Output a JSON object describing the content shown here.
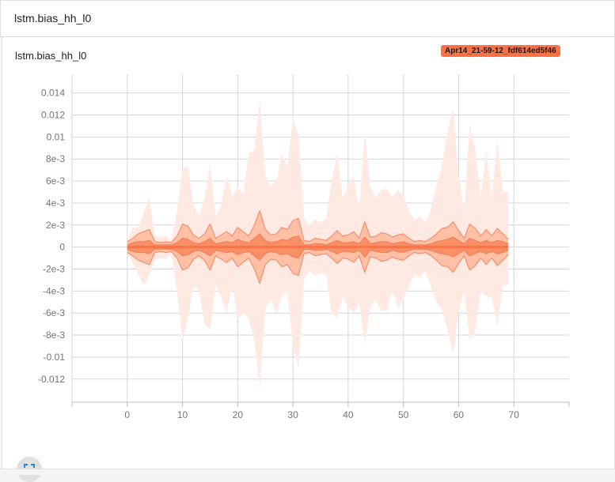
{
  "header": {
    "title": "lstm.bias_hh_l0"
  },
  "card": {
    "title": "lstm.bias_hh_l0",
    "run_label": "Apr14_21-59-12_fdf614ed5f46"
  },
  "icons": {
    "expand": "fullscreen-icon"
  },
  "colors": {
    "outer_band": "#ffe9e3",
    "mid_band": "#ffb89b",
    "inner_band": "#f7895f",
    "median": "#ff7043",
    "edge": "#f26f47",
    "grid": "#d6d6d6"
  },
  "chart_data": {
    "type": "area",
    "title": "lstm.bias_hh_l0",
    "xlabel": "",
    "ylabel": "",
    "xlim": [
      -10,
      80
    ],
    "ylim": [
      -0.0141,
      0.0157
    ],
    "x_ticks": [
      0,
      10,
      20,
      30,
      40,
      50,
      60,
      70
    ],
    "y_ticks": [
      {
        "v": 0.014,
        "label": "0.014"
      },
      {
        "v": 0.012,
        "label": "0.012"
      },
      {
        "v": 0.01,
        "label": "0.01"
      },
      {
        "v": 0.008,
        "label": "8e-3"
      },
      {
        "v": 0.006,
        "label": "6e-3"
      },
      {
        "v": 0.004,
        "label": "4e-3"
      },
      {
        "v": 0.002,
        "label": "2e-3"
      },
      {
        "v": 0,
        "label": "0"
      },
      {
        "v": -0.002,
        "label": "-2e-3"
      },
      {
        "v": -0.004,
        "label": "-4e-3"
      },
      {
        "v": -0.006,
        "label": "-6e-3"
      },
      {
        "v": -0.008,
        "label": "-8e-3"
      },
      {
        "v": -0.01,
        "label": "-0.01"
      },
      {
        "v": -0.012,
        "label": "-0.012"
      }
    ],
    "grid": true,
    "steps": [
      0,
      1,
      2,
      3,
      4,
      5,
      6,
      7,
      8,
      9,
      10,
      11,
      12,
      13,
      14,
      15,
      16,
      17,
      18,
      19,
      20,
      21,
      22,
      23,
      24,
      25,
      26,
      27,
      28,
      29,
      30,
      31,
      32,
      33,
      34,
      35,
      36,
      37,
      38,
      39,
      40,
      41,
      42,
      43,
      44,
      45,
      46,
      47,
      48,
      49,
      50,
      51,
      52,
      53,
      54,
      55,
      56,
      57,
      58,
      59,
      60,
      61,
      62,
      63,
      64,
      65,
      66,
      67,
      68,
      69
    ],
    "max": [
      0.0005,
      0.0018,
      0.0018,
      0.0032,
      0.0045,
      0.0011,
      0.0009,
      0.0011,
      0.0006,
      0.0032,
      0.0072,
      0.0073,
      0.0038,
      0.0028,
      0.0045,
      0.0075,
      0.0028,
      0.0038,
      0.0065,
      0.0045,
      0.0055,
      0.0048,
      0.0085,
      0.0088,
      0.0134,
      0.0065,
      0.0055,
      0.006,
      0.0085,
      0.0072,
      0.0118,
      0.0102,
      0.0026,
      0.0018,
      0.0026,
      0.0022,
      0.0026,
      0.006,
      0.0085,
      0.0045,
      0.0055,
      0.0065,
      0.0035,
      0.0105,
      0.0055,
      0.0045,
      0.0052,
      0.0053,
      0.0045,
      0.0052,
      0.0047,
      0.0033,
      0.0025,
      0.0028,
      0.0022,
      0.0035,
      0.0055,
      0.0075,
      0.0105,
      0.0126,
      0.0065,
      0.0033,
      0.0112,
      0.0088,
      0.0045,
      0.0088,
      0.0045,
      0.0097,
      0.005,
      0.005
    ],
    "p93": [
      0.0005,
      0.0008,
      0.0012,
      0.0014,
      0.0016,
      0.0005,
      0.0004,
      0.0005,
      0.0004,
      0.001,
      0.0021,
      0.0019,
      0.0011,
      0.0008,
      0.0012,
      0.0021,
      0.0008,
      0.0011,
      0.0014,
      0.001,
      0.0018,
      0.0014,
      0.001,
      0.002,
      0.0033,
      0.0016,
      0.0011,
      0.0012,
      0.0018,
      0.0016,
      0.0024,
      0.0026,
      0.0006,
      0.0005,
      0.0008,
      0.0007,
      0.0006,
      0.001,
      0.0015,
      0.001,
      0.0011,
      0.0014,
      0.0008,
      0.0023,
      0.0009,
      0.001,
      0.0013,
      0.0012,
      0.0009,
      0.0011,
      0.0012,
      0.0008,
      0.0005,
      0.0006,
      0.0005,
      0.0008,
      0.0012,
      0.0017,
      0.0018,
      0.0023,
      0.0015,
      0.0008,
      0.0021,
      0.0017,
      0.001,
      0.0016,
      0.001,
      0.0017,
      0.0012,
      0.0007
    ],
    "p84": [
      0.0002,
      0.0004,
      0.0005,
      0.0005,
      0.0006,
      0.0002,
      0.0002,
      0.0002,
      0.0002,
      0.0004,
      0.0008,
      0.0007,
      0.0004,
      0.0003,
      0.0005,
      0.0008,
      0.0003,
      0.0004,
      0.0005,
      0.0004,
      0.0007,
      0.0005,
      0.0004,
      0.0008,
      0.0012,
      0.0006,
      0.0004,
      0.0005,
      0.0007,
      0.0006,
      0.0009,
      0.001,
      0.0002,
      0.0002,
      0.0003,
      0.0003,
      0.0002,
      0.0004,
      0.0006,
      0.0004,
      0.0004,
      0.0005,
      0.0003,
      0.0009,
      0.0003,
      0.0004,
      0.0005,
      0.0005,
      0.0003,
      0.0004,
      0.0005,
      0.0003,
      0.0002,
      0.0002,
      0.0002,
      0.0003,
      0.0005,
      0.0006,
      0.0007,
      0.0009,
      0.0006,
      0.0003,
      0.0008,
      0.0006,
      0.0004,
      0.0006,
      0.0004,
      0.0006,
      0.0005,
      0.0003
    ],
    "median": [
      0,
      0,
      0,
      0,
      0,
      0,
      0,
      0,
      0,
      0,
      0,
      0,
      0,
      0,
      0,
      0,
      0,
      0,
      0,
      0,
      0,
      0,
      0,
      0,
      0,
      0,
      0,
      0,
      0,
      0,
      0,
      0,
      0,
      0,
      0,
      0,
      0,
      0,
      0,
      0,
      0,
      0,
      0,
      0,
      0,
      0,
      0,
      0,
      0,
      0,
      0,
      0,
      0,
      0,
      0,
      0,
      0,
      0,
      0,
      0,
      0,
      0,
      0,
      0,
      0,
      0,
      0,
      0,
      0,
      0
    ],
    "p16": [
      -0.0002,
      -0.0004,
      -0.0005,
      -0.0005,
      -0.0006,
      -0.0002,
      -0.0002,
      -0.0002,
      -0.0002,
      -0.0004,
      -0.0008,
      -0.0007,
      -0.0004,
      -0.0003,
      -0.0005,
      -0.0008,
      -0.0003,
      -0.0004,
      -0.0005,
      -0.0004,
      -0.0007,
      -0.0005,
      -0.0004,
      -0.0008,
      -0.0012,
      -0.0006,
      -0.0004,
      -0.0005,
      -0.0007,
      -0.0006,
      -0.0009,
      -0.001,
      -0.0002,
      -0.0002,
      -0.0003,
      -0.0003,
      -0.0002,
      -0.0004,
      -0.0006,
      -0.0004,
      -0.0004,
      -0.0005,
      -0.0003,
      -0.0009,
      -0.0003,
      -0.0004,
      -0.0005,
      -0.0005,
      -0.0003,
      -0.0004,
      -0.0005,
      -0.0003,
      -0.0002,
      -0.0002,
      -0.0002,
      -0.0003,
      -0.0005,
      -0.0006,
      -0.0007,
      -0.0009,
      -0.0006,
      -0.0003,
      -0.0008,
      -0.0006,
      -0.0004,
      -0.0006,
      -0.0004,
      -0.0006,
      -0.0005,
      -0.0003
    ],
    "p7": [
      -0.0005,
      -0.0008,
      -0.0012,
      -0.0014,
      -0.0016,
      -0.0005,
      -0.0004,
      -0.0005,
      -0.0004,
      -0.001,
      -0.0021,
      -0.0019,
      -0.0011,
      -0.0008,
      -0.0012,
      -0.0021,
      -0.0008,
      -0.0011,
      -0.0014,
      -0.001,
      -0.0018,
      -0.0014,
      -0.001,
      -0.002,
      -0.0033,
      -0.0016,
      -0.0011,
      -0.0012,
      -0.0018,
      -0.0016,
      -0.0024,
      -0.0026,
      -0.0006,
      -0.0005,
      -0.0008,
      -0.0007,
      -0.0006,
      -0.001,
      -0.0015,
      -0.001,
      -0.0011,
      -0.0014,
      -0.0008,
      -0.0023,
      -0.0009,
      -0.001,
      -0.0013,
      -0.0012,
      -0.0009,
      -0.0011,
      -0.0012,
      -0.0008,
      -0.0005,
      -0.0006,
      -0.0005,
      -0.0008,
      -0.0012,
      -0.0017,
      -0.0018,
      -0.0023,
      -0.0015,
      -0.0008,
      -0.0021,
      -0.0017,
      -0.001,
      -0.0016,
      -0.001,
      -0.0017,
      -0.0012,
      -0.0007
    ],
    "min": [
      -0.0005,
      -0.0015,
      -0.0025,
      -0.0035,
      -0.0025,
      -0.0012,
      -0.001,
      -0.0011,
      -0.0006,
      -0.004,
      -0.0085,
      -0.0065,
      -0.0035,
      -0.004,
      -0.007,
      -0.0075,
      -0.0035,
      -0.0045,
      -0.006,
      -0.0035,
      -0.0065,
      -0.006,
      -0.0065,
      -0.0085,
      -0.0127,
      -0.0055,
      -0.0048,
      -0.006,
      -0.0045,
      -0.004,
      -0.009,
      -0.011,
      -0.003,
      -0.0022,
      -0.0026,
      -0.0024,
      -0.0025,
      -0.006,
      -0.0065,
      -0.0045,
      -0.0055,
      -0.006,
      -0.005,
      -0.0088,
      -0.0055,
      -0.0048,
      -0.0058,
      -0.0058,
      -0.004,
      -0.0055,
      -0.0048,
      -0.0035,
      -0.0025,
      -0.0028,
      -0.0022,
      -0.0036,
      -0.005,
      -0.0058,
      -0.0075,
      -0.0097,
      -0.006,
      -0.004,
      -0.0085,
      -0.0075,
      -0.004,
      -0.0045,
      -0.0045,
      -0.0072,
      -0.0035,
      -0.0035
    ]
  }
}
